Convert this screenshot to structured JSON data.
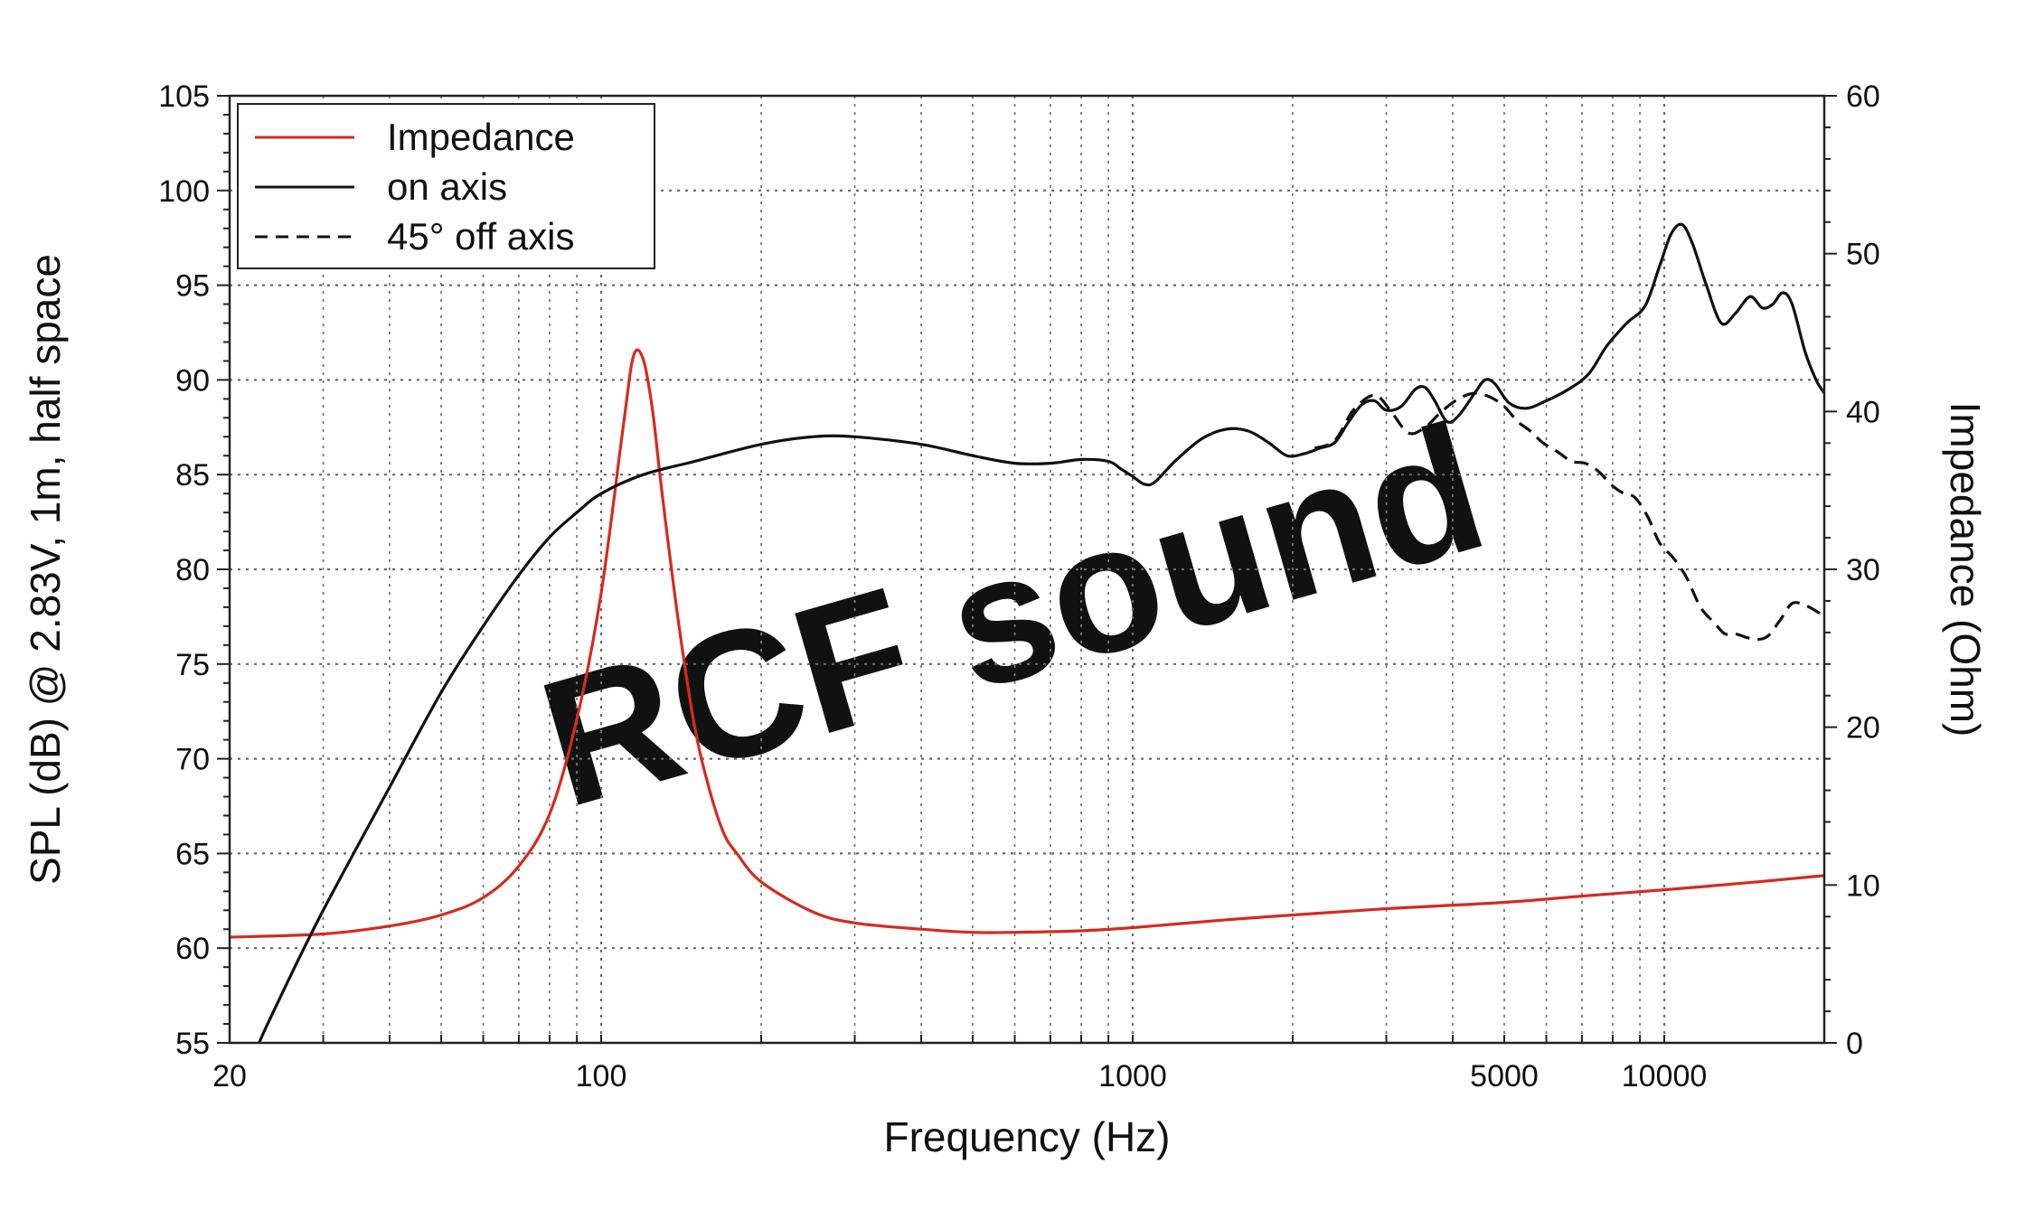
{
  "chart_data": {
    "type": "line",
    "watermark": "RCF sound",
    "xlabel": "Frequency (Hz)",
    "ylabel": "SPL (dB) @ 2.83V, 1m, half space",
    "y2label": "Impedance (Ohm)",
    "xscale": "log",
    "xlim": [
      20,
      20000
    ],
    "ylim": [
      55,
      105
    ],
    "y2lim": [
      0,
      60
    ],
    "grid": true,
    "legend_position": "top-left",
    "x_tick_labels": [
      {
        "value": 20,
        "label": "20"
      },
      {
        "value": 100,
        "label": "100"
      },
      {
        "value": 1000,
        "label": "1000"
      },
      {
        "value": 5000,
        "label": "5000"
      },
      {
        "value": 10000,
        "label": "10000"
      }
    ],
    "y_ticks": [
      55,
      60,
      65,
      70,
      75,
      80,
      85,
      90,
      95,
      100,
      105
    ],
    "y2_ticks": [
      0,
      10,
      20,
      30,
      40,
      50,
      60
    ],
    "series": [
      {
        "name": "Impedance",
        "axis": "right",
        "color": "#d62a1e",
        "style": "solid",
        "points": [
          [
            20,
            6.7
          ],
          [
            30,
            6.9
          ],
          [
            40,
            7.4
          ],
          [
            50,
            8.1
          ],
          [
            60,
            9.2
          ],
          [
            70,
            11.2
          ],
          [
            80,
            14.5
          ],
          [
            90,
            20.5
          ],
          [
            100,
            28.5
          ],
          [
            110,
            39
          ],
          [
            115,
            43.5
          ],
          [
            120,
            43.3
          ],
          [
            125,
            40
          ],
          [
            130,
            35
          ],
          [
            140,
            26.5
          ],
          [
            150,
            20
          ],
          [
            160,
            16
          ],
          [
            170,
            13.3
          ],
          [
            180,
            12
          ],
          [
            200,
            10.2
          ],
          [
            250,
            8.3
          ],
          [
            300,
            7.6
          ],
          [
            400,
            7.2
          ],
          [
            500,
            7.0
          ],
          [
            600,
            7.0
          ],
          [
            800,
            7.1
          ],
          [
            1000,
            7.3
          ],
          [
            1500,
            7.8
          ],
          [
            2000,
            8.1
          ],
          [
            3000,
            8.5
          ],
          [
            5000,
            8.9
          ],
          [
            7000,
            9.3
          ],
          [
            10000,
            9.7
          ],
          [
            15000,
            10.2
          ],
          [
            20000,
            10.6
          ]
        ]
      },
      {
        "name": "on axis",
        "axis": "left",
        "color": "#111111",
        "style": "solid",
        "points": [
          [
            20,
            50
          ],
          [
            22,
            54
          ],
          [
            25,
            57.5
          ],
          [
            30,
            62
          ],
          [
            40,
            68.5
          ],
          [
            50,
            73.5
          ],
          [
            60,
            77
          ],
          [
            70,
            79.7
          ],
          [
            80,
            81.7
          ],
          [
            90,
            83
          ],
          [
            100,
            84
          ],
          [
            120,
            85
          ],
          [
            150,
            85.7
          ],
          [
            200,
            86.6
          ],
          [
            250,
            87
          ],
          [
            300,
            87
          ],
          [
            400,
            86.6
          ],
          [
            500,
            86
          ],
          [
            600,
            85.6
          ],
          [
            700,
            85.6
          ],
          [
            800,
            85.8
          ],
          [
            900,
            85.7
          ],
          [
            950,
            85.3
          ],
          [
            1000,
            84.9
          ],
          [
            1050,
            84.5
          ],
          [
            1100,
            84.6
          ],
          [
            1200,
            85.7
          ],
          [
            1350,
            86.9
          ],
          [
            1500,
            87.4
          ],
          [
            1650,
            87.3
          ],
          [
            1800,
            86.7
          ],
          [
            1950,
            86
          ],
          [
            2100,
            86.1
          ],
          [
            2250,
            86.4
          ],
          [
            2400,
            86.7
          ],
          [
            2550,
            87.8
          ],
          [
            2700,
            88.7
          ],
          [
            2850,
            88.9
          ],
          [
            3000,
            88.4
          ],
          [
            3200,
            88.6
          ],
          [
            3400,
            89.5
          ],
          [
            3550,
            89.6
          ],
          [
            3700,
            88.9
          ],
          [
            3900,
            87.8
          ],
          [
            4100,
            88.1
          ],
          [
            4400,
            89.3
          ],
          [
            4600,
            90
          ],
          [
            4800,
            89.8
          ],
          [
            5100,
            88.8
          ],
          [
            5500,
            88.5
          ],
          [
            6000,
            88.9
          ],
          [
            6600,
            89.5
          ],
          [
            7200,
            90.3
          ],
          [
            7800,
            91.8
          ],
          [
            8500,
            93
          ],
          [
            9200,
            93.9
          ],
          [
            9800,
            96
          ],
          [
            10300,
            97.7
          ],
          [
            10800,
            98.2
          ],
          [
            11300,
            97.2
          ],
          [
            12000,
            95
          ],
          [
            12800,
            93
          ],
          [
            13600,
            93.5
          ],
          [
            14500,
            94.4
          ],
          [
            15300,
            93.8
          ],
          [
            16000,
            94
          ],
          [
            16700,
            94.6
          ],
          [
            17400,
            94
          ],
          [
            18400,
            91.5
          ],
          [
            19300,
            90
          ],
          [
            20000,
            89.3
          ]
        ]
      },
      {
        "name": "45° off axis",
        "axis": "left",
        "color": "#111111",
        "style": "dashed",
        "points": [
          [
            2200,
            86.4
          ],
          [
            2400,
            86.8
          ],
          [
            2600,
            88.4
          ],
          [
            2850,
            89.2
          ],
          [
            3050,
            88.4
          ],
          [
            3300,
            87.2
          ],
          [
            3550,
            87.5
          ],
          [
            3800,
            88.3
          ],
          [
            4100,
            89
          ],
          [
            4400,
            89.3
          ],
          [
            4700,
            89.1
          ],
          [
            5000,
            88.6
          ],
          [
            5300,
            87.8
          ],
          [
            5600,
            87.3
          ],
          [
            5900,
            86.7
          ],
          [
            6300,
            86.2
          ],
          [
            6700,
            85.7
          ],
          [
            7100,
            85.6
          ],
          [
            7500,
            85.2
          ],
          [
            8000,
            84.4
          ],
          [
            8400,
            84
          ],
          [
            8800,
            83.8
          ],
          [
            9300,
            82.8
          ],
          [
            9800,
            81.4
          ],
          [
            10400,
            80.6
          ],
          [
            11000,
            79.6
          ],
          [
            11700,
            78
          ],
          [
            12400,
            77.2
          ],
          [
            13000,
            76.6
          ],
          [
            13600,
            76.6
          ],
          [
            14300,
            76.4
          ],
          [
            15000,
            76.3
          ],
          [
            15700,
            76.5
          ],
          [
            16500,
            77.3
          ],
          [
            17400,
            78.2
          ],
          [
            18400,
            78.1
          ],
          [
            19300,
            77.8
          ],
          [
            20000,
            77.5
          ]
        ]
      }
    ]
  }
}
